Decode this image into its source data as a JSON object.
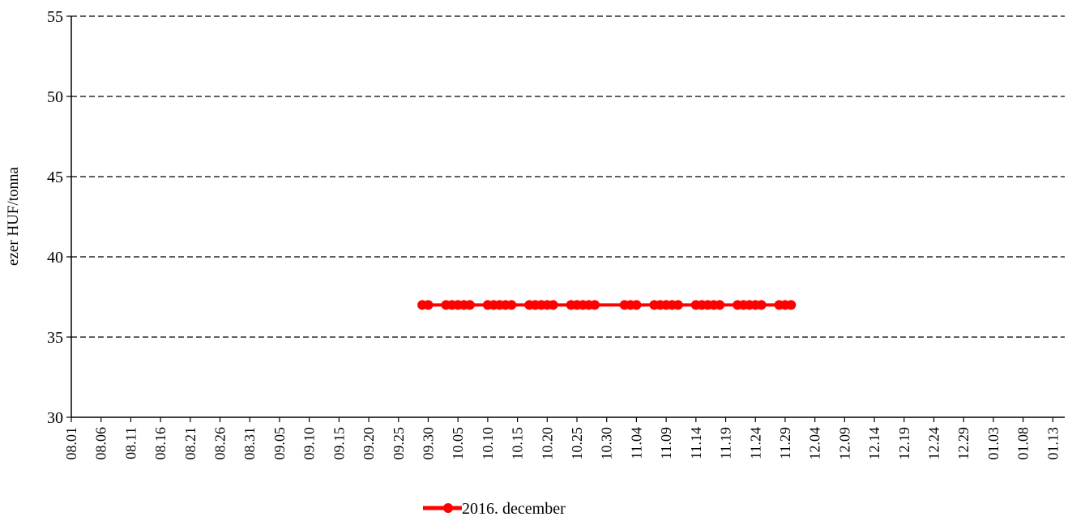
{
  "chart_data": {
    "type": "line",
    "title": "",
    "xlabel": "",
    "ylabel": "ezer HUF/tonna",
    "ylim": [
      30,
      55
    ],
    "yticks": [
      30,
      35,
      40,
      45,
      50,
      55
    ],
    "x_start_date": "2016-08-01",
    "x_end_date": "2017-01-15",
    "x_tick_labels": [
      "08.01",
      "08.06",
      "08.11",
      "08.16",
      "08.21",
      "08.26",
      "08.31",
      "09.05",
      "09.10",
      "09.15",
      "09.20",
      "09.25",
      "09.30",
      "10.05",
      "10.10",
      "10.15",
      "10.20",
      "10.25",
      "10.30",
      "11.04",
      "11.09",
      "11.14",
      "11.19",
      "11.24",
      "11.29",
      "12.04",
      "12.09",
      "12.14",
      "12.19",
      "12.24",
      "12.29",
      "01.03",
      "01.08",
      "01.13"
    ],
    "grid": "horizontal dashed",
    "legend_position": "bottom",
    "series": [
      {
        "name": "2016. december",
        "color": "#ff0000",
        "marker": "circle",
        "x": [
          "09.29",
          "09.30",
          "10.03",
          "10.04",
          "10.05",
          "10.06",
          "10.07",
          "10.10",
          "10.11",
          "10.12",
          "10.13",
          "10.14",
          "10.17",
          "10.18",
          "10.19",
          "10.20",
          "10.21",
          "10.24",
          "10.25",
          "10.26",
          "10.27",
          "10.28",
          "11.02",
          "11.03",
          "11.04",
          "11.07",
          "11.08",
          "11.09",
          "11.10",
          "11.11",
          "11.14",
          "11.15",
          "11.16",
          "11.17",
          "11.18",
          "11.21",
          "11.22",
          "11.23",
          "11.24",
          "11.25",
          "11.28",
          "11.29",
          "11.30"
        ],
        "y": [
          37,
          37,
          37,
          37,
          37,
          37,
          37,
          37,
          37,
          37,
          37,
          37,
          37,
          37,
          37,
          37,
          37,
          37,
          37,
          37,
          37,
          37,
          37,
          37,
          37,
          37,
          37,
          37,
          37,
          37,
          37,
          37,
          37,
          37,
          37,
          37,
          37,
          37,
          37,
          37,
          37,
          37,
          37
        ]
      }
    ]
  }
}
